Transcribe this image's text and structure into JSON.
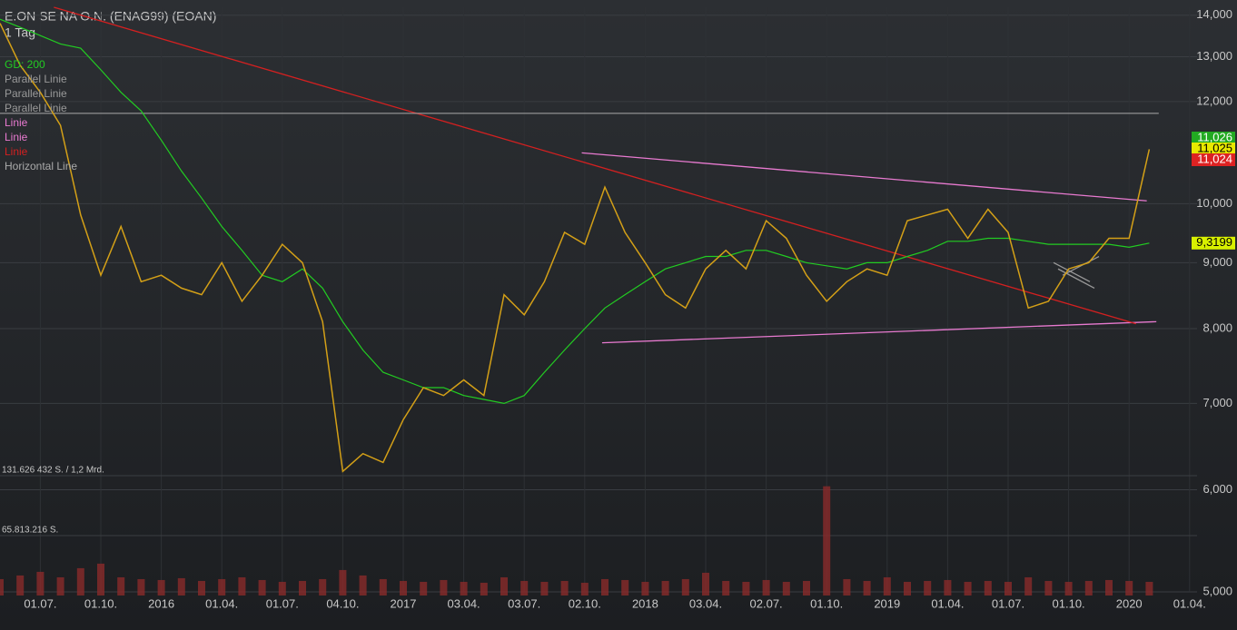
{
  "chart_data": {
    "type": "line",
    "title": "E.ON SE NA O.N. (ENAG99) (EOAN)",
    "subtitle": "1 Tag",
    "log_scale": true,
    "grid": true,
    "categories": [
      null,
      null,
      "01.07.",
      null,
      null,
      "01.10.",
      null,
      null,
      "2016",
      null,
      null,
      "01.04.",
      null,
      null,
      "01.07.",
      null,
      null,
      "04.10.",
      null,
      null,
      "2017",
      null,
      null,
      "03.04.",
      null,
      null,
      "03.07.",
      null,
      null,
      "02.10.",
      null,
      null,
      "2018",
      null,
      null,
      "03.04.",
      null,
      null,
      "02.07.",
      null,
      null,
      "01.10.",
      null,
      null,
      "2019",
      null,
      null,
      "01.04.",
      null,
      null,
      "01.07.",
      null,
      null,
      "01.10.",
      null,
      null,
      "2020",
      null,
      null,
      "01.04."
    ],
    "series": [
      {
        "name": "GD: 200",
        "color": "#22cc22",
        "values": [
          13.9,
          13.7,
          13.5,
          13.3,
          13.2,
          12.7,
          12.2,
          11.8,
          11.2,
          10.6,
          10.1,
          9.6,
          9.2,
          8.8,
          8.7,
          8.9,
          8.6,
          8.1,
          7.7,
          7.4,
          7.3,
          7.2,
          7.2,
          7.1,
          7.05,
          7.0,
          7.1,
          7.4,
          7.7,
          8.0,
          8.3,
          8.5,
          8.7,
          8.9,
          9.0,
          9.1,
          9.1,
          9.2,
          9.2,
          9.1,
          9.0,
          8.95,
          8.9,
          9.0,
          9.0,
          9.1,
          9.2,
          9.35,
          9.35,
          9.4,
          9.4,
          9.35,
          9.3,
          9.3,
          9.3,
          9.3,
          9.25,
          9.32,
          null,
          null
        ]
      },
      {
        "name": "E.ON",
        "color": "#d4a017",
        "values": [
          13.8,
          12.8,
          12.2,
          11.5,
          9.8,
          8.8,
          9.6,
          8.7,
          8.8,
          8.6,
          8.5,
          9.0,
          8.4,
          8.8,
          9.3,
          9.0,
          8.1,
          6.2,
          6.4,
          6.3,
          6.8,
          7.2,
          7.1,
          7.3,
          7.1,
          8.5,
          8.2,
          8.7,
          9.5,
          9.3,
          10.3,
          9.5,
          9.0,
          8.5,
          8.3,
          8.9,
          9.2,
          8.9,
          9.7,
          9.4,
          8.8,
          8.4,
          8.7,
          8.9,
          8.8,
          9.7,
          9.8,
          9.9,
          9.4,
          9.9,
          9.5,
          8.3,
          8.4,
          8.9,
          9.0,
          9.4,
          9.4,
          11.02,
          null,
          null
        ]
      }
    ],
    "volume": {
      "color": "#8a2a2a",
      "ylim": [
        0,
        131626432
      ],
      "yticks": [
        {
          "value": 131626432,
          "label": "131.626 432 S. / 1,2 Mrd."
        },
        {
          "value": 65813216,
          "label": "65.813.216 S."
        }
      ],
      "values": [
        18000000,
        22000000,
        26000000,
        20000000,
        30000000,
        35000000,
        20000000,
        18000000,
        17000000,
        19000000,
        16000000,
        18000000,
        20000000,
        17000000,
        15000000,
        16000000,
        18000000,
        28000000,
        22000000,
        18000000,
        16000000,
        15000000,
        17000000,
        15000000,
        14000000,
        20000000,
        16000000,
        15000000,
        16000000,
        14000000,
        18000000,
        17000000,
        15000000,
        16000000,
        18000000,
        25000000,
        16000000,
        15000000,
        17000000,
        15000000,
        16000000,
        120000000,
        18000000,
        16000000,
        20000000,
        15000000,
        16000000,
        17000000,
        15000000,
        16000000,
        15000000,
        20000000,
        16000000,
        15000000,
        16000000,
        17000000,
        16000000,
        15000000,
        null,
        null
      ]
    },
    "ylim": [
      5,
      14.2
    ],
    "yticks": [
      {
        "value": 14,
        "label": "14,000"
      },
      {
        "value": 13,
        "label": "13,000"
      },
      {
        "value": 12,
        "label": "12,000"
      },
      {
        "value": 10,
        "label": "10,000"
      },
      {
        "value": 9,
        "label": "9,000"
      },
      {
        "value": 8,
        "label": "8,000"
      },
      {
        "value": 7,
        "label": "7,000"
      },
      {
        "value": 6,
        "label": "6,000"
      },
      {
        "value": 5,
        "label": "5,000"
      }
    ],
    "drawings": [
      {
        "name": "Parallel Linie",
        "color": "#999999",
        "values": [
          9.0,
          8.7
        ]
      },
      {
        "name": "Parallel Linie",
        "color": "#999999",
        "values": [
          8.9,
          8.6
        ]
      },
      {
        "name": "Parallel Linie",
        "color": "#999999",
        "values": [
          8.8,
          9.1
        ]
      },
      {
        "name": "Linie",
        "color": "#e87ad0",
        "values": [
          10.95,
          10.05
        ]
      },
      {
        "name": "Linie",
        "color": "#e87ad0",
        "values": [
          7.8,
          8.1
        ]
      },
      {
        "name": "Linie",
        "color": "#d42020",
        "values": [
          14.2,
          8.07
        ]
      },
      {
        "name": "Horizontal Line",
        "color": "#aaaaaa",
        "values": [
          11.75,
          11.75
        ]
      }
    ],
    "price_labels": [
      {
        "value": 11.026,
        "label": "11,026",
        "color": "#22aa22"
      },
      {
        "value": 11.025,
        "label": "11,025",
        "color": "#e8e800"
      },
      {
        "value": 11.024,
        "label": "11,024",
        "color": "#dd2222"
      },
      {
        "value": 9.3199,
        "label": "9,3199",
        "color": "#d8f000"
      }
    ]
  }
}
